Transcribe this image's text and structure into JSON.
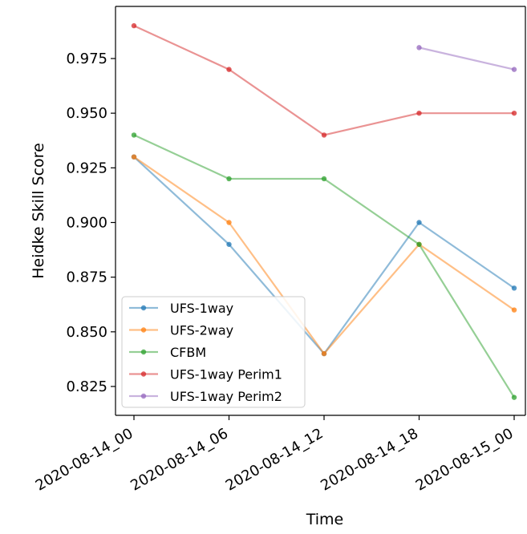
{
  "chart_data": {
    "type": "line",
    "title": "",
    "xlabel": "Time",
    "ylabel": "Heidke Skill Score",
    "categories": [
      "2020-08-14_00",
      "2020-08-14_06",
      "2020-08-14_12",
      "2020-08-14_18",
      "2020-08-15_00"
    ],
    "ylim": [
      0.8125,
      0.9875
    ],
    "yticks": [
      0.825,
      0.85,
      0.875,
      0.9,
      0.925,
      0.95,
      0.975
    ],
    "ytick_labels": [
      "0.825",
      "0.850",
      "0.875",
      "0.900",
      "0.925",
      "0.950",
      "0.975"
    ],
    "grid": false,
    "legend_position": "lower-left",
    "series": [
      {
        "name": "UFS-1way",
        "color": "#1f77b4",
        "values": [
          0.93,
          0.89,
          0.84,
          0.9,
          0.87
        ]
      },
      {
        "name": "UFS-2way",
        "color": "#ff7f0e",
        "values": [
          0.93,
          0.9,
          0.84,
          0.89,
          0.86
        ]
      },
      {
        "name": "CFBM",
        "color": "#2ca02c",
        "values": [
          0.94,
          0.92,
          0.92,
          0.89,
          0.82
        ]
      },
      {
        "name": "UFS-1way Perim1",
        "color": "#d62728",
        "values": [
          0.99,
          0.97,
          0.94,
          0.95,
          0.95
        ]
      },
      {
        "name": "UFS-1way Perim2",
        "color": "#9467bd",
        "values": [
          null,
          null,
          null,
          0.98,
          0.97
        ]
      }
    ]
  }
}
